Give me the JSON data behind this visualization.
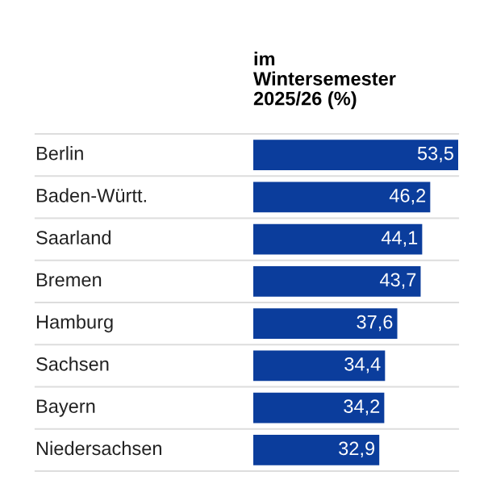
{
  "chart_data": {
    "type": "bar",
    "orientation": "horizontal",
    "title": "im\nWintersemester\n2025/26 (%)",
    "categories": [
      "Berlin",
      "Baden-Württ.",
      "Saarland",
      "Bremen",
      "Hamburg",
      "Sachsen",
      "Bayern",
      "Niedersachsen"
    ],
    "values": [
      53.5,
      46.2,
      44.1,
      43.7,
      37.6,
      34.4,
      34.2,
      32.9
    ],
    "value_labels": [
      "53,5",
      "46,2",
      "44,1",
      "43,7",
      "37,6",
      "34,4",
      "34,2",
      "32,9"
    ],
    "color": "#0b3d9c"
  }
}
